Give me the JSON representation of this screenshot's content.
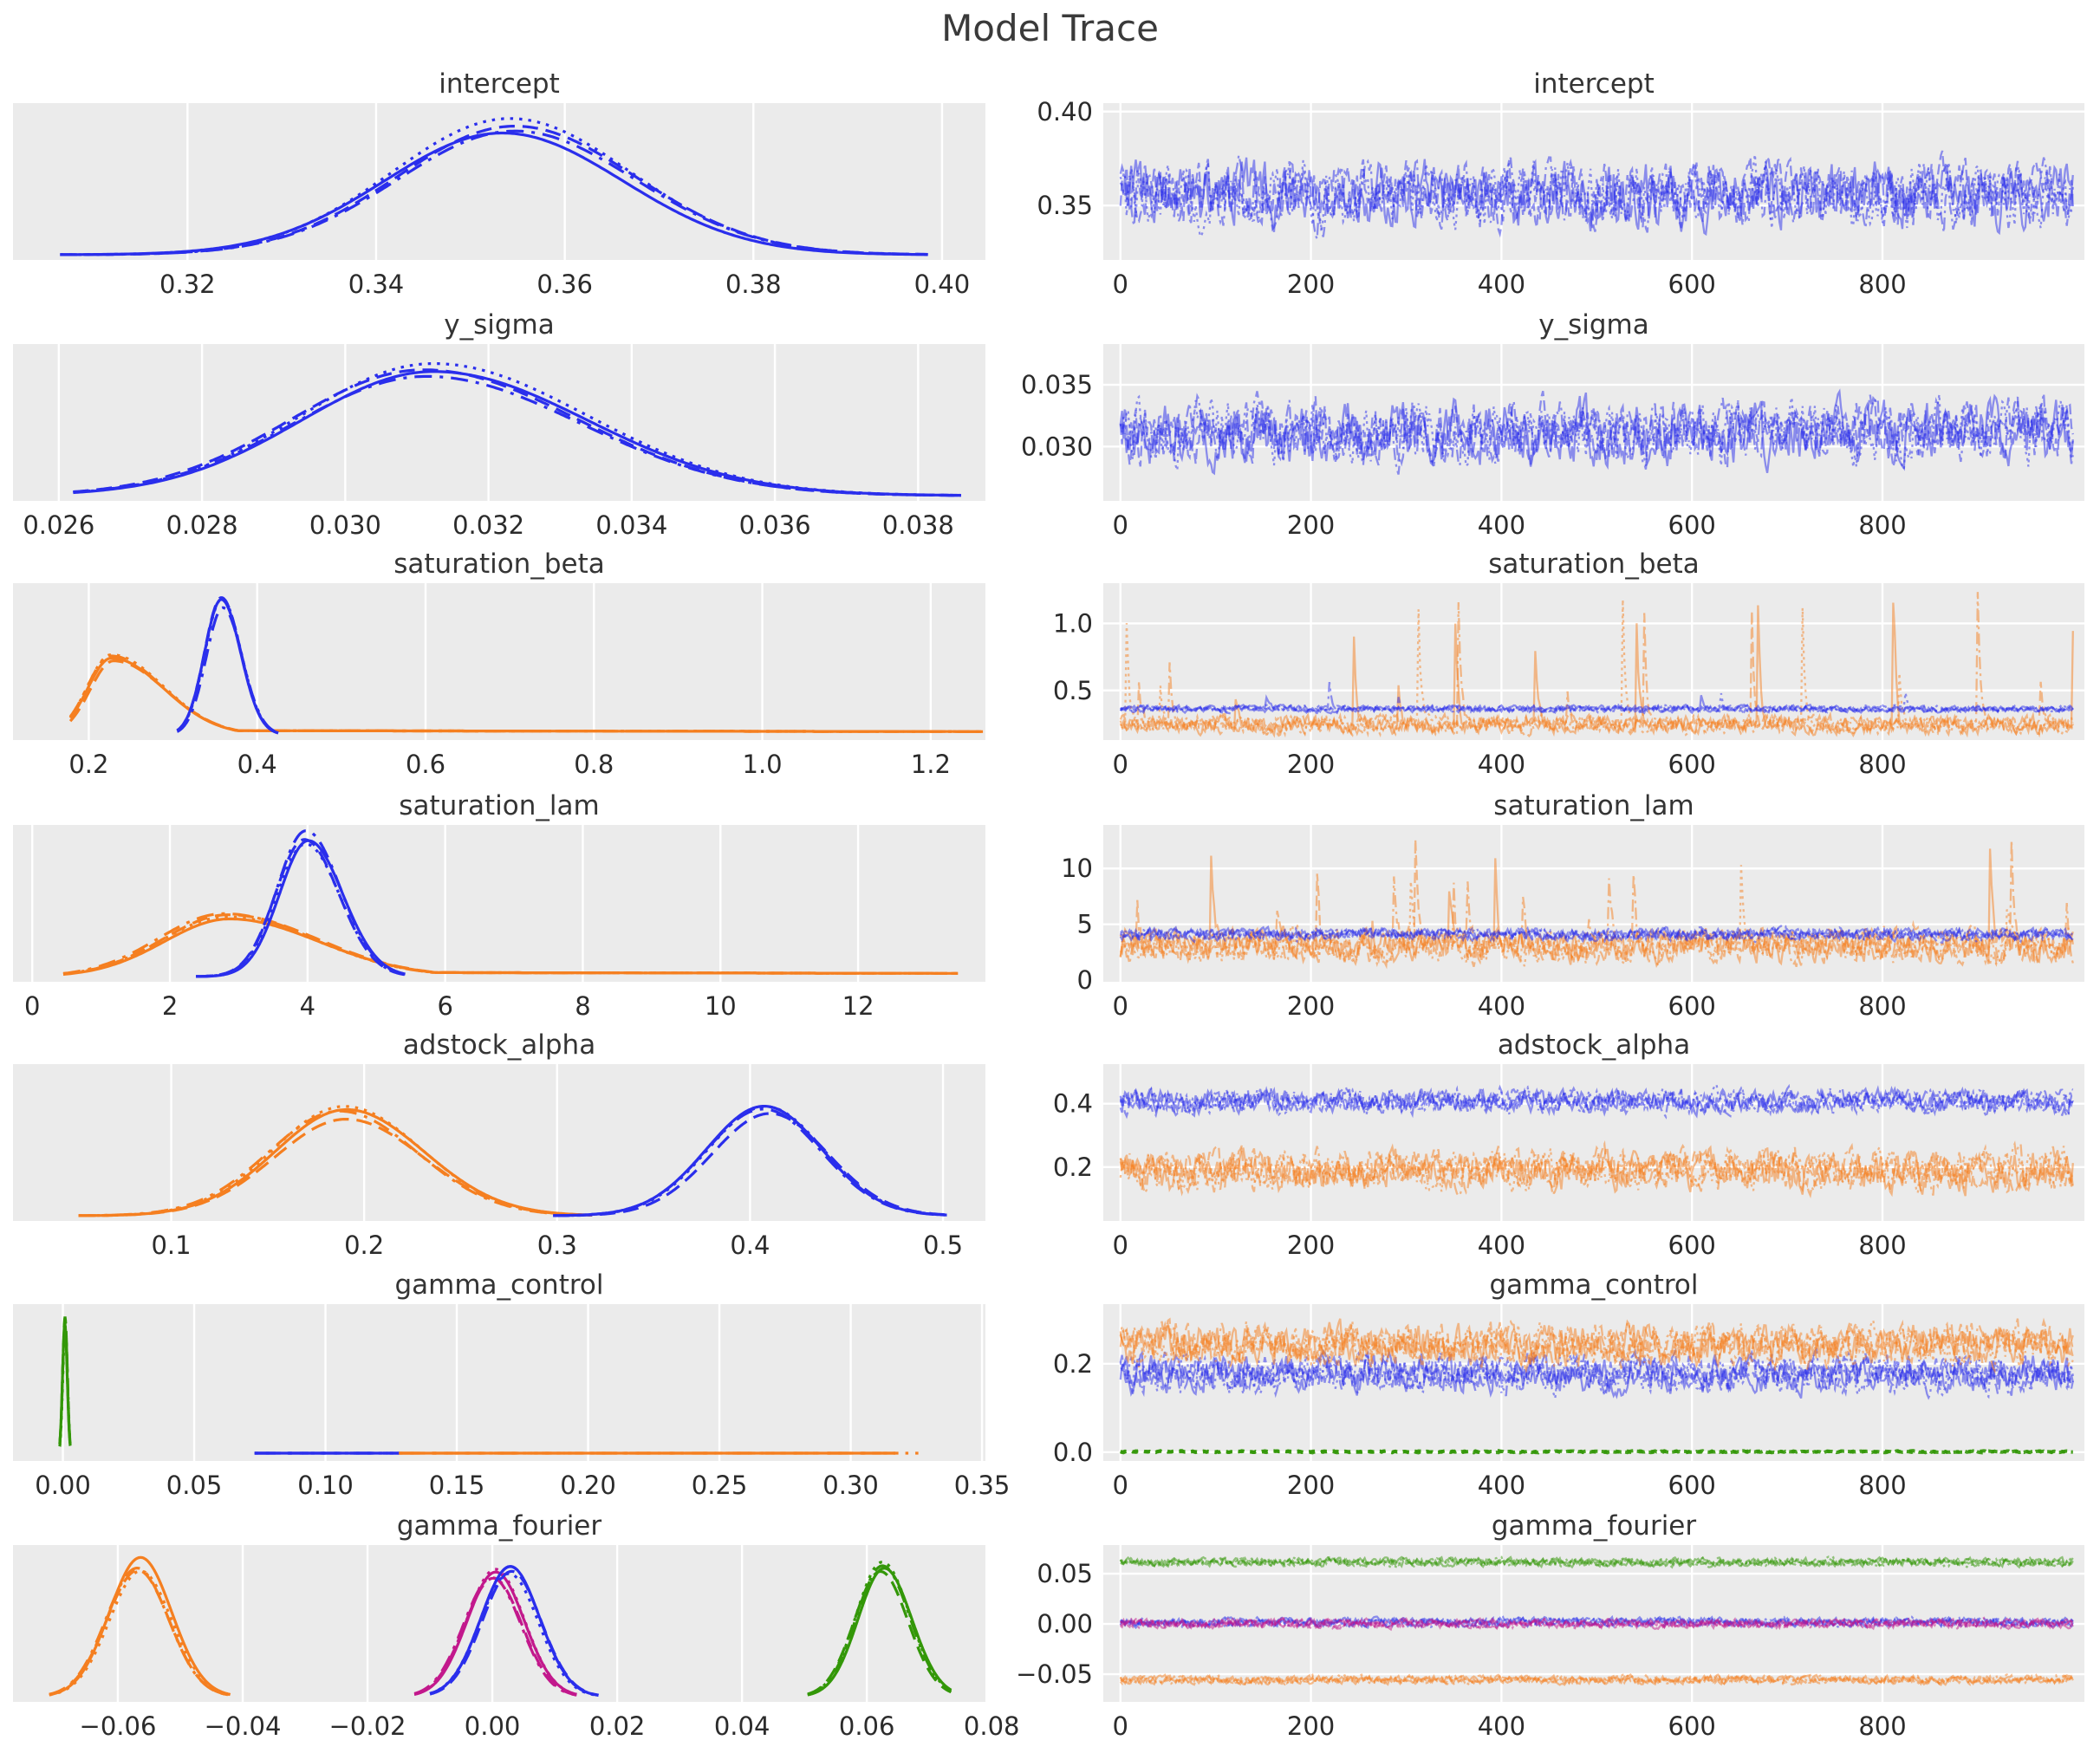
{
  "suptitle": "Model Trace",
  "colors": {
    "blue": "#2a2eec",
    "orange": "#f57f20",
    "green": "#339708",
    "magenta": "#c2188c",
    "panel_bg": "#ebebeb",
    "grid": "#ffffff",
    "tick_text": "#2b2b2b",
    "title_text": "#343434"
  },
  "chart_data": {
    "type": "line",
    "figure": "mcmc-trace-plot",
    "title": "Model Trace",
    "legend": "none",
    "grid": "on",
    "n_chains": 4,
    "chain_linestyles": [
      "solid",
      "dashed",
      "dotted",
      "dashdot"
    ],
    "rows": [
      {
        "param": "intercept",
        "kde": {
          "xlim": [
            0.3015,
            0.4046
          ],
          "xticks": {
            "values": [
              0.32,
              0.34,
              0.36,
              0.38,
              0.4
            ],
            "labels": [
              "0.32",
              "0.34",
              "0.36",
              "0.38",
              "0.40"
            ]
          },
          "curves": [
            {
              "color": "blue",
              "mu": 0.354,
              "sd_left": 0.0125,
              "sd_right": 0.0128,
              "peak": 0.9,
              "range": [
                0.3065,
                0.3985
              ]
            }
          ]
        },
        "trace": {
          "xlim": [
            -18,
            1012
          ],
          "xticks": {
            "values": [
              0,
              200,
              400,
              600,
              800
            ],
            "labels": [
              "0",
              "200",
              "400",
              "600",
              "800"
            ]
          },
          "ylim": [
            0.321,
            0.4045
          ],
          "yticks": {
            "values": [
              0.35,
              0.4
            ],
            "labels": [
              "0.35",
              "0.40"
            ]
          },
          "series": [
            {
              "color": "blue",
              "mean": 0.356,
              "sd": 0.011
            }
          ]
        }
      },
      {
        "param": "y_sigma",
        "kde": {
          "xlim": [
            0.02536,
            0.03894
          ],
          "xticks": {
            "values": [
              0.026,
              0.028,
              0.03,
              0.032,
              0.034,
              0.036,
              0.038
            ],
            "labels": [
              "0.026",
              "0.028",
              "0.030",
              "0.032",
              "0.034",
              "0.036",
              "0.038"
            ]
          },
          "curves": [
            {
              "color": "blue",
              "mu": 0.0312,
              "sd_left": 0.00185,
              "sd_right": 0.00215,
              "peak": 0.88,
              "range": [
                0.0262,
                0.0386
              ]
            }
          ]
        },
        "trace": {
          "xlim": [
            -18,
            1012
          ],
          "xticks": {
            "values": [
              0,
              200,
              400,
              600,
              800
            ],
            "labels": [
              "0",
              "200",
              "400",
              "600",
              "800"
            ]
          },
          "ylim": [
            0.0256,
            0.0383
          ],
          "yticks": {
            "values": [
              0.03,
              0.035
            ],
            "labels": [
              "0.030",
              "0.035"
            ]
          },
          "series": [
            {
              "color": "blue",
              "mean": 0.0312,
              "sd": 0.0016
            }
          ]
        }
      },
      {
        "param": "saturation_beta",
        "kde": {
          "xlim": [
            0.11,
            1.265
          ],
          "xticks": {
            "values": [
              0.2,
              0.4,
              0.6,
              0.8,
              1.0,
              1.2
            ],
            "labels": [
              "0.2",
              "0.4",
              "0.6",
              "0.8",
              "1.0",
              "1.2"
            ]
          },
          "curves": [
            {
              "color": "orange",
              "mu": 0.228,
              "sd_left": 0.028,
              "sd_right": 0.062,
              "peak": 0.55,
              "range": [
                0.178,
                1.262
              ],
              "tail": {
                "to": 1.26,
                "h": 0.03
              }
            },
            {
              "color": "blue",
              "mu": 0.358,
              "sd_left": 0.02,
              "sd_right": 0.023,
              "peak": 0.95,
              "range": [
                0.305,
                0.425
              ]
            }
          ]
        },
        "trace": {
          "xlim": [
            -18,
            1012
          ],
          "xticks": {
            "values": [
              0,
              200,
              400,
              600,
              800
            ],
            "labels": [
              "0",
              "200",
              "400",
              "600",
              "800"
            ]
          },
          "ylim": [
            0.13,
            1.3
          ],
          "yticks": {
            "values": [
              0.5,
              1.0
            ],
            "labels": [
              "0.5",
              "1.0"
            ]
          },
          "series": [
            {
              "color": "orange",
              "mean": 0.245,
              "sd": 0.042,
              "spikes": {
                "p": 0.01,
                "amp": [
                  0.15,
                  1.0
                ]
              }
            },
            {
              "color": "blue",
              "mean": 0.362,
              "sd": 0.016,
              "spikes": {
                "p": 0.002,
                "amp": [
                  0.05,
                  0.18
                ]
              }
            }
          ]
        }
      },
      {
        "param": "saturation_lam",
        "kde": {
          "xlim": [
            -0.28,
            13.85
          ],
          "xticks": {
            "values": [
              0,
              2,
              4,
              6,
              8,
              10,
              12
            ],
            "labels": [
              "0",
              "2",
              "4",
              "6",
              "8",
              "10",
              "12"
            ]
          },
          "curves": [
            {
              "color": "orange",
              "mu": 2.82,
              "sd_left": 0.95,
              "sd_right": 1.3,
              "peak": 0.42,
              "range": [
                0.45,
                13.45
              ],
              "tail": {
                "to": 13.4,
                "h": 0.03
              }
            },
            {
              "color": "blue",
              "mu": 3.98,
              "sd_left": 0.42,
              "sd_right": 0.5,
              "peak": 0.97,
              "range": [
                2.38,
                5.42
              ]
            }
          ]
        },
        "trace": {
          "xlim": [
            -18,
            1012
          ],
          "xticks": {
            "values": [
              0,
              200,
              400,
              600,
              800
            ],
            "labels": [
              "0",
              "200",
              "400",
              "600",
              "800"
            ]
          },
          "ylim": [
            -0.15,
            13.9
          ],
          "yticks": {
            "values": [
              0,
              5,
              10
            ],
            "labels": [
              "0",
              "5",
              "10"
            ]
          },
          "series": [
            {
              "color": "orange",
              "mean": 3.05,
              "sd": 0.95,
              "spikes": {
                "p": 0.012,
                "amp": [
                  1.0,
                  9.5
                ]
              }
            },
            {
              "color": "blue",
              "mean": 4.1,
              "sd": 0.33
            }
          ]
        }
      },
      {
        "param": "adstock_alpha",
        "kde": {
          "xlim": [
            0.018,
            0.522
          ],
          "xticks": {
            "values": [
              0.1,
              0.2,
              0.3,
              0.4,
              0.5
            ],
            "labels": [
              "0.1",
              "0.2",
              "0.3",
              "0.4",
              "0.5"
            ]
          },
          "curves": [
            {
              "color": "orange",
              "mu": 0.19,
              "sd_left": 0.037,
              "sd_right": 0.04,
              "peak": 0.72,
              "range": [
                0.052,
                0.318
              ]
            },
            {
              "color": "blue",
              "mu": 0.408,
              "sd_left": 0.03,
              "sd_right": 0.03,
              "peak": 0.75,
              "range": [
                0.298,
                0.502
              ]
            }
          ]
        },
        "trace": {
          "xlim": [
            -18,
            1012
          ],
          "xticks": {
            "values": [
              0,
              200,
              400,
              600,
              800
            ],
            "labels": [
              "0",
              "200",
              "400",
              "600",
              "800"
            ]
          },
          "ylim": [
            0.03,
            0.525
          ],
          "yticks": {
            "values": [
              0.2,
              0.4
            ],
            "labels": [
              "0.2",
              "0.4"
            ]
          },
          "series": [
            {
              "color": "blue",
              "mean": 0.408,
              "sd": 0.024
            },
            {
              "color": "orange",
              "mean": 0.19,
              "sd": 0.04
            }
          ]
        }
      },
      {
        "param": "gamma_control",
        "kde": {
          "xlim": [
            -0.019,
            0.3513
          ],
          "xticks": {
            "values": [
              0.0,
              0.05,
              0.1,
              0.15,
              0.2,
              0.25,
              0.3,
              0.35
            ],
            "labels": [
              "0.00",
              "0.05",
              "0.10",
              "0.15",
              "0.20",
              "0.25",
              "0.30",
              "0.35"
            ]
          },
          "curves": [
            {
              "color": "green",
              "mu": 0.0008,
              "sd_left": 0.0009,
              "sd_right": 0.0009,
              "peak": 0.93,
              "range": [
                -0.0012,
                0.0028
              ]
            },
            {
              "color": "blue",
              "flat": [
                0.073,
                0.128
              ],
              "height": 0.018
            },
            {
              "color": "orange",
              "flat": [
                0.128,
                0.317
              ],
              "height": 0.018,
              "dotted_ext": 0.328
            }
          ]
        },
        "trace": {
          "xlim": [
            -18,
            1012
          ],
          "xticks": {
            "values": [
              0,
              200,
              400,
              600,
              800
            ],
            "labels": [
              "0",
              "200",
              "400",
              "600",
              "800"
            ]
          },
          "ylim": [
            -0.02,
            0.335
          ],
          "yticks": {
            "values": [
              0.0,
              0.2
            ],
            "labels": [
              "0.0",
              "0.2"
            ]
          },
          "series": [
            {
              "color": "blue",
              "mean": 0.178,
              "sd": 0.027
            },
            {
              "color": "orange",
              "mean": 0.243,
              "sd": 0.03
            },
            {
              "color": "green",
              "mean": 0.001,
              "sd": 0.0012,
              "flatdash": true
            }
          ]
        }
      },
      {
        "param": "gamma_fourier",
        "kde": {
          "xlim": [
            -0.0768,
            0.079
          ],
          "xticks": {
            "values": [
              -0.06,
              -0.04,
              -0.02,
              0.0,
              0.02,
              0.04,
              0.06,
              0.08
            ],
            "labels": [
              "−0.06",
              "−0.04",
              "−0.02",
              "0.00",
              "0.02",
              "0.04",
              "0.06",
              "0.08"
            ]
          },
          "curves": [
            {
              "color": "orange",
              "mu": -0.0565,
              "sd_left": 0.005,
              "sd_right": 0.005,
              "peak": 0.92,
              "range": [
                -0.071,
                -0.042
              ]
            },
            {
              "color": "magenta",
              "mu": 0.0002,
              "sd_left": 0.0046,
              "sd_right": 0.0046,
              "peak": 0.88,
              "range": [
                -0.0125,
                0.0135
              ]
            },
            {
              "color": "blue",
              "mu": 0.0028,
              "sd_left": 0.0047,
              "sd_right": 0.0047,
              "peak": 0.9,
              "range": [
                -0.01,
                0.017
              ]
            },
            {
              "color": "green",
              "mu": 0.0625,
              "sd_left": 0.0042,
              "sd_right": 0.0044,
              "peak": 0.92,
              "range": [
                0.0505,
                0.0735
              ]
            }
          ]
        },
        "trace": {
          "xlim": [
            -18,
            1012
          ],
          "xticks": {
            "values": [
              0,
              200,
              400,
              600,
              800
            ],
            "labels": [
              "0",
              "200",
              "400",
              "600",
              "800"
            ]
          },
          "ylim": [
            -0.0775,
            0.0785
          ],
          "yticks": {
            "values": [
              -0.05,
              0.0,
              0.05
            ],
            "labels": [
              "−0.05",
              "0.00",
              "0.05"
            ]
          },
          "series": [
            {
              "color": "green",
              "mean": 0.0615,
              "sd": 0.0026
            },
            {
              "color": "blue",
              "mean": 0.0018,
              "sd": 0.0028
            },
            {
              "color": "magenta",
              "mean": 0.0002,
              "sd": 0.0028
            },
            {
              "color": "orange",
              "mean": -0.0555,
              "sd": 0.0026
            }
          ]
        }
      }
    ]
  }
}
